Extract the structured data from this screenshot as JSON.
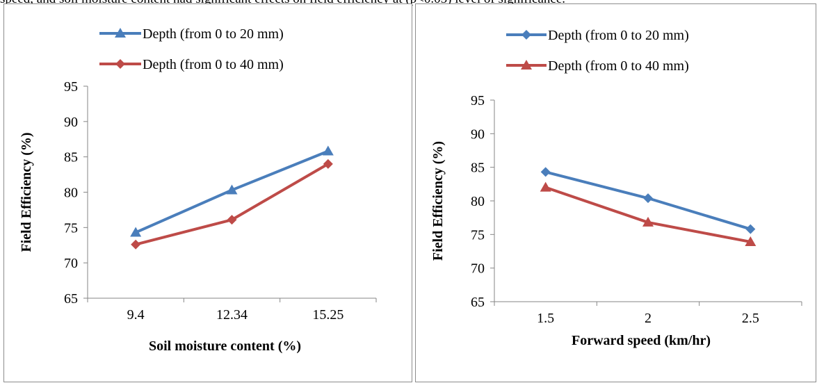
{
  "header_text": "speed, and soil moisture content had significant effects on field efficiency at (p<0.05) level of significance.",
  "colors": {
    "blue": "#4a7ebb",
    "red": "#be4b48",
    "axis": "#868686"
  },
  "chart_data": [
    {
      "type": "line",
      "xlabel": "Soil moisture content (%)",
      "ylabel": "Field Efficiency (%)",
      "categories": [
        "9.4",
        "12.34",
        "15.25"
      ],
      "yticks": [
        "65",
        "70",
        "75",
        "80",
        "85",
        "90",
        "95"
      ],
      "ylim": [
        65,
        95
      ],
      "grid": false,
      "legend_position": "top",
      "series": [
        {
          "name": "Depth (from 0 to 20 mm)",
          "values": [
            74.3,
            80.3,
            85.8
          ],
          "color": "#4a7ebb",
          "marker": "triangle"
        },
        {
          "name": "Depth (from 0 to 40 mm)",
          "values": [
            72.6,
            76.1,
            84.0
          ],
          "color": "#be4b48",
          "marker": "diamond"
        }
      ]
    },
    {
      "type": "line",
      "xlabel": "Forward speed (km/hr)",
      "ylabel": "Field Efficiency (%)",
      "categories": [
        "1.5",
        "2",
        "2.5"
      ],
      "yticks": [
        "65",
        "70",
        "75",
        "80",
        "85",
        "90",
        "95"
      ],
      "ylim": [
        65,
        95
      ],
      "grid": false,
      "legend_position": "top",
      "series": [
        {
          "name": "Depth (from 0 to 20 mm)",
          "values": [
            84.3,
            80.4,
            75.8
          ],
          "color": "#4a7ebb",
          "marker": "diamond"
        },
        {
          "name": "Depth (from 0 to 40 mm)",
          "values": [
            82.0,
            76.8,
            73.9
          ],
          "color": "#be4b48",
          "marker": "triangle"
        }
      ]
    }
  ]
}
